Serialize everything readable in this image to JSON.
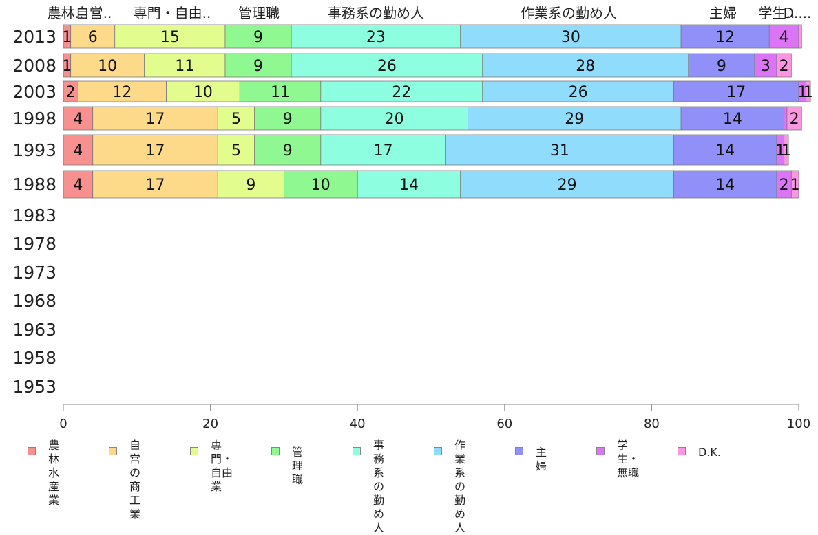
{
  "chart_data": {
    "type": "bar",
    "orientation": "horizontal",
    "stacked": true,
    "categories": [
      "2013",
      "2008",
      "2003",
      "1998",
      "1993",
      "1988",
      "1983",
      "1978",
      "1973",
      "1968",
      "1963",
      "1958",
      "1953"
    ],
    "series": [
      {
        "name": "農林\n水産業",
        "header": "農林..",
        "color": "#f89090",
        "values": [
          1,
          1,
          2,
          4,
          4,
          4,
          null,
          null,
          null,
          null,
          null,
          null,
          null
        ],
        "labels": [
          "1",
          "1",
          "2",
          "4",
          "4",
          "4"
        ]
      },
      {
        "name": "自営の\n商工業",
        "header": "自営..",
        "color": "#fdd98a",
        "values": [
          6,
          10,
          12,
          17,
          17,
          17,
          null,
          null,
          null,
          null,
          null,
          null,
          null
        ],
        "labels": [
          "6",
          "10",
          "12",
          "17",
          "17",
          "17"
        ]
      },
      {
        "name": "専門・\n自由業",
        "header": "専門・自由..",
        "color": "#e2fc8e",
        "values": [
          15,
          11,
          10,
          5,
          5,
          9,
          null,
          null,
          null,
          null,
          null,
          null,
          null
        ],
        "labels": [
          "15",
          "11",
          "10",
          "5",
          "5",
          "9"
        ]
      },
      {
        "name": "管理職",
        "header": "管理職",
        "color": "#90f890",
        "values": [
          9,
          9,
          11,
          9,
          9,
          10,
          null,
          null,
          null,
          null,
          null,
          null,
          null
        ],
        "labels": [
          "9",
          "9",
          "11",
          "9",
          "9",
          "10"
        ]
      },
      {
        "name": "事務系の\n勤め人",
        "header": "事務系の勤め人",
        "color": "#8efee0",
        "values": [
          23,
          26,
          22,
          20,
          17,
          14,
          null,
          null,
          null,
          null,
          null,
          null,
          null
        ],
        "labels": [
          "23",
          "26",
          "22",
          "20",
          "17",
          "14"
        ]
      },
      {
        "name": "作業系の\n勤め人",
        "header": "作業系の勤め人",
        "color": "#90dcfc",
        "values": [
          30,
          28,
          26,
          29,
          31,
          29,
          null,
          null,
          null,
          null,
          null,
          null,
          null
        ],
        "labels": [
          "30",
          "28",
          "26",
          "29",
          "31",
          "29"
        ]
      },
      {
        "name": "主婦",
        "header": "主婦",
        "color": "#9090f8",
        "values": [
          12,
          9,
          17,
          14,
          14,
          14,
          null,
          null,
          null,
          null,
          null,
          null,
          null
        ],
        "labels": [
          "12",
          "9",
          "17",
          "14",
          "14",
          "14"
        ]
      },
      {
        "name": "学生・\n無職",
        "header": "学生..",
        "color": "#dc74f6",
        "values": [
          4,
          3,
          1,
          0.4,
          1,
          2,
          null,
          null,
          null,
          null,
          null,
          null,
          null
        ],
        "labels": [
          "4",
          "3",
          "1",
          "",
          "1",
          "2"
        ]
      },
      {
        "name": "D.K.",
        "header": "D....",
        "color": "#fc96e0",
        "values": [
          0.4,
          2,
          0.6,
          2,
          0.6,
          1,
          null,
          null,
          null,
          null,
          null,
          null,
          null
        ],
        "labels": [
          "",
          "2",
          "1",
          "2",
          "1",
          "1"
        ]
      }
    ],
    "xlim": [
      0,
      100
    ],
    "x_ticks": [
      "0",
      "20",
      "40",
      "60",
      "80",
      "100"
    ],
    "grid": false,
    "legend_position": "bottom"
  }
}
